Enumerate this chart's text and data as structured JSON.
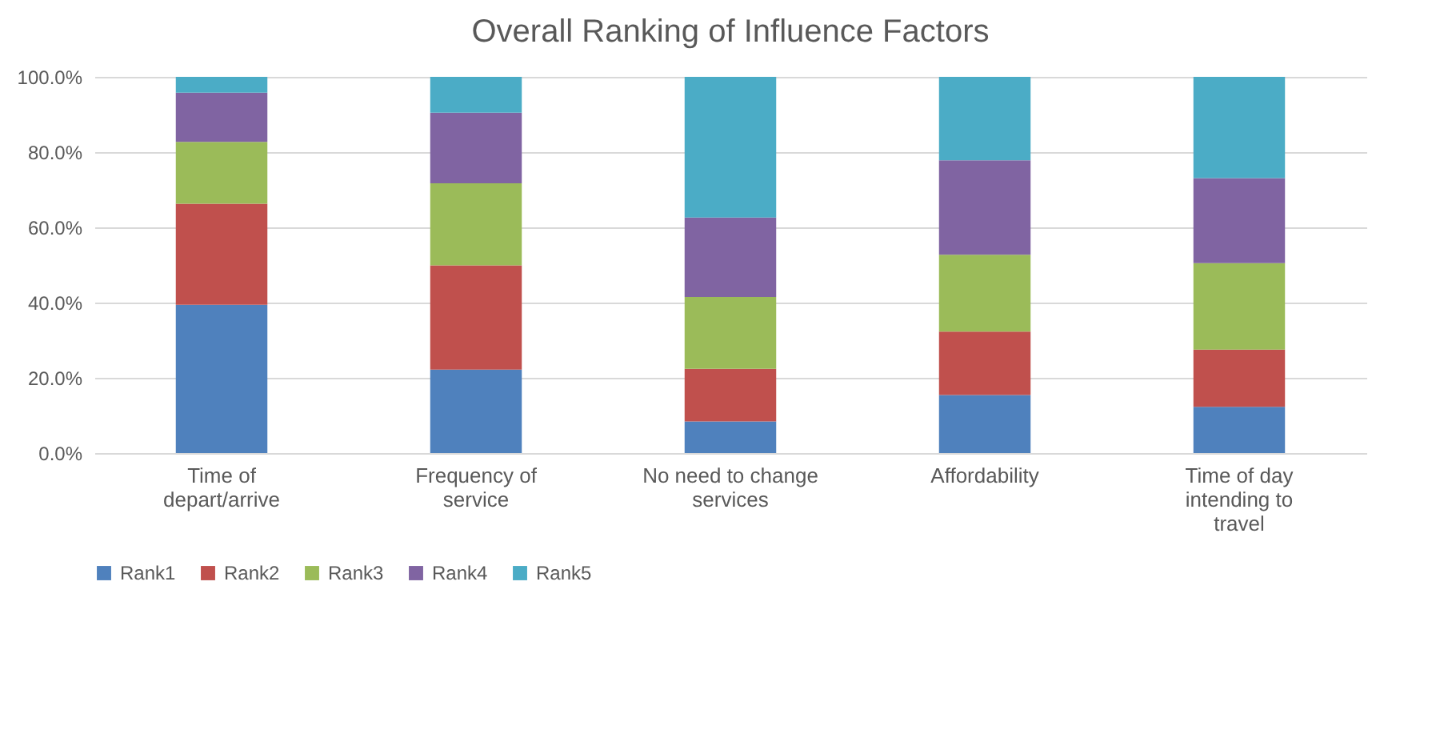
{
  "chart_data": {
    "type": "bar",
    "title": "Overall Ranking of Influence Factors",
    "stacked": true,
    "categories": [
      "Time of depart/arrive",
      "Frequency of service",
      "No need to change services",
      "Affordability",
      "Time of day intending to travel"
    ],
    "series": [
      {
        "name": "Rank1",
        "color": "#4f81bd",
        "values": [
          39.4,
          22.2,
          8.4,
          15.4,
          12.3
        ]
      },
      {
        "name": "Rank2",
        "color": "#c0504d",
        "values": [
          26.9,
          27.7,
          14.0,
          16.9,
          15.2
        ]
      },
      {
        "name": "Rank3",
        "color": "#9bbb59",
        "values": [
          16.4,
          21.8,
          19.1,
          20.4,
          23.0
        ]
      },
      {
        "name": "Rank4",
        "color": "#8064a2",
        "values": [
          13.1,
          18.8,
          21.1,
          25.1,
          22.6
        ]
      },
      {
        "name": "Rank5",
        "color": "#4bacc6",
        "values": [
          4.2,
          9.5,
          37.4,
          22.2,
          26.9
        ]
      }
    ],
    "ylim": [
      0,
      100
    ],
    "yticks": [
      {
        "value": 0,
        "label": "0.0%"
      },
      {
        "value": 20,
        "label": "20.0%"
      },
      {
        "value": 40,
        "label": "40.0%"
      },
      {
        "value": 60,
        "label": "60.0%"
      },
      {
        "value": 80,
        "label": "80.0%"
      },
      {
        "value": 100,
        "label": "100.0%"
      }
    ],
    "grid": "y",
    "legend": "bottom"
  }
}
